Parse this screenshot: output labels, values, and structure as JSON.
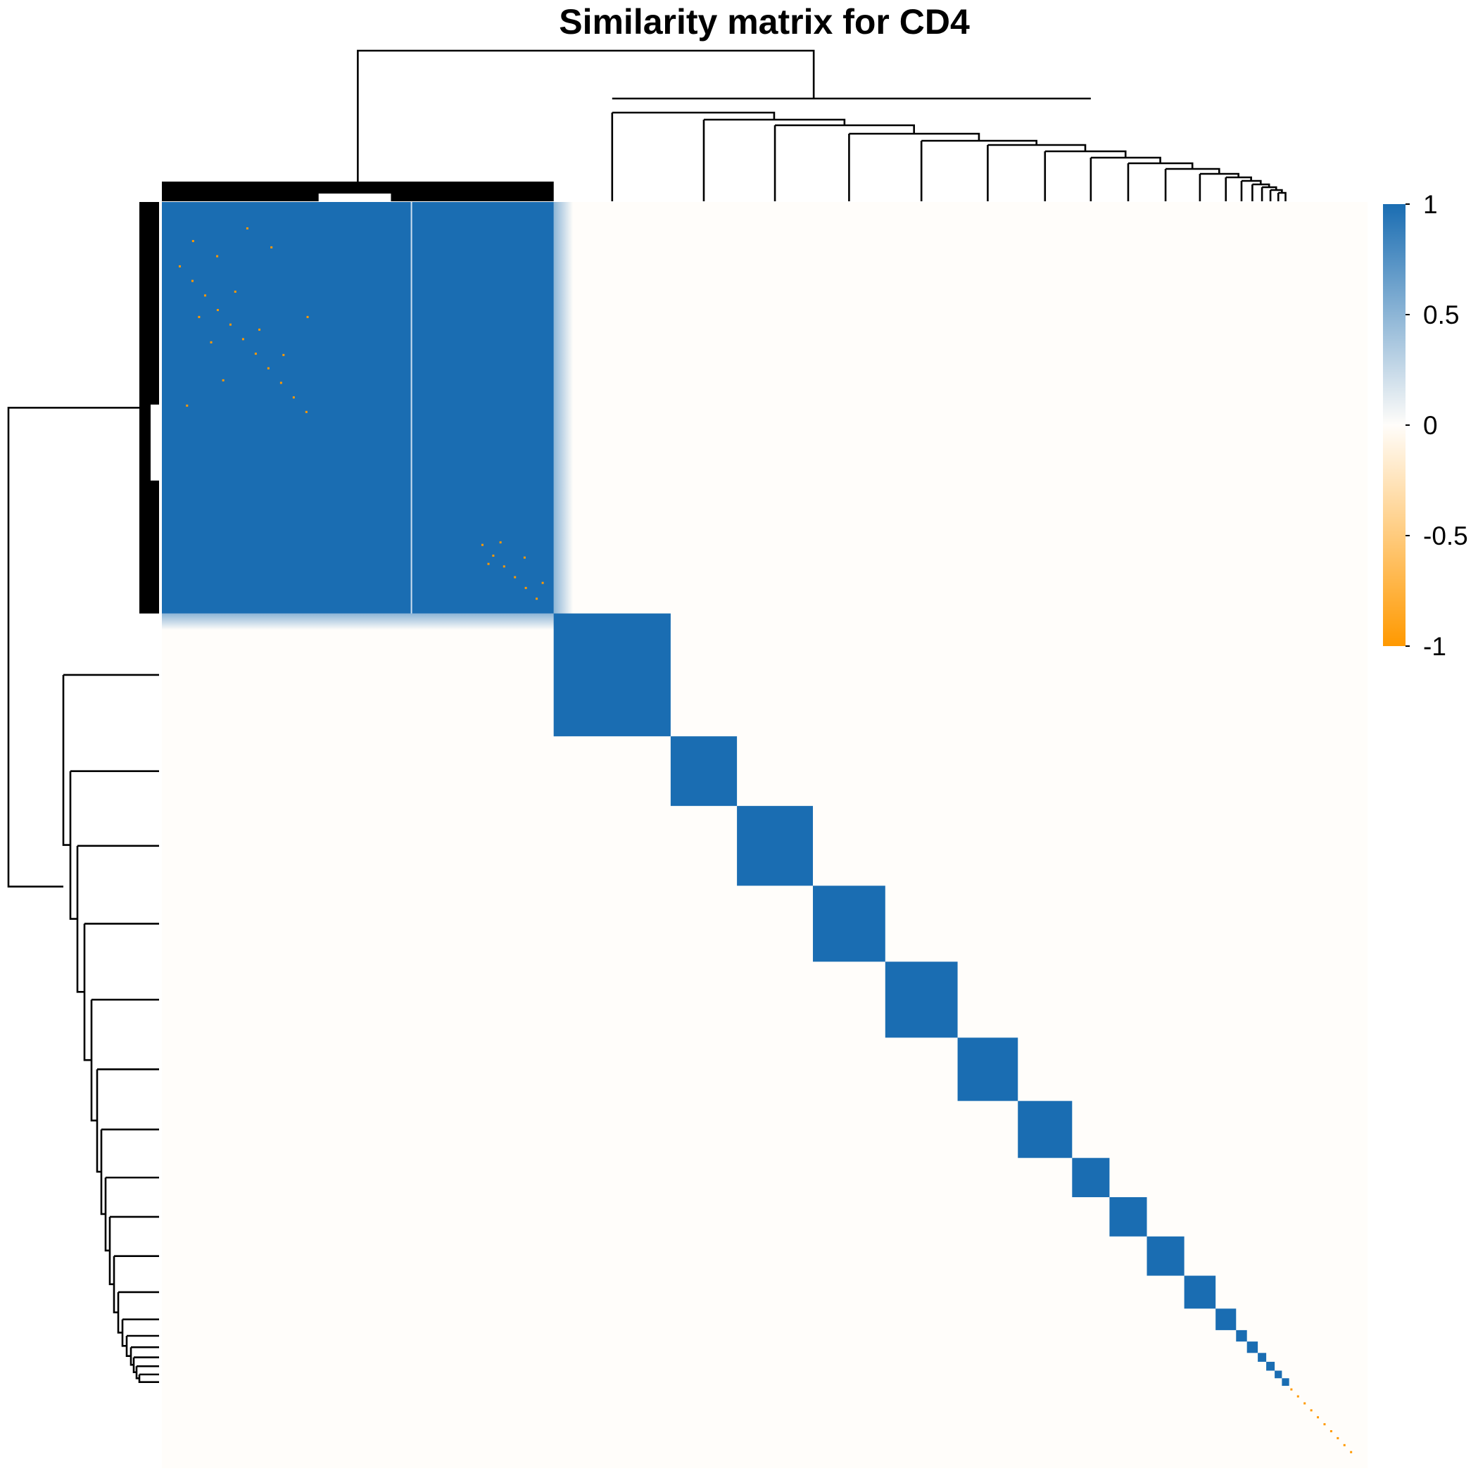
{
  "chart_data": {
    "type": "heatmap",
    "title": "Similarity matrix for CD4",
    "xlabel": "",
    "ylabel": "",
    "matrix_kind": "symmetric clustered similarity matrix with row and column dendrograms",
    "color_scale": {
      "min": -1,
      "max": 1,
      "ticks": [
        1,
        0.5,
        0,
        -0.5,
        -1
      ],
      "tick_labels": [
        "1",
        "0.5",
        "0",
        "-0.5",
        "-1"
      ],
      "colors": {
        "low": "#ff9900",
        "mid": "#fffdfa",
        "high": "#1a6db2"
      }
    },
    "n_items_approx": 100,
    "diagonal_blocks": [
      {
        "cluster": 1,
        "start": 0.0,
        "end": 32.5,
        "value": 1
      },
      {
        "cluster": 2,
        "start": 32.5,
        "end": 42.2,
        "value": 1
      },
      {
        "cluster": 3,
        "start": 42.2,
        "end": 47.7,
        "value": 1
      },
      {
        "cluster": 4,
        "start": 47.7,
        "end": 54.0,
        "value": 1
      },
      {
        "cluster": 5,
        "start": 54.0,
        "end": 60.0,
        "value": 1
      },
      {
        "cluster": 6,
        "start": 60.0,
        "end": 66.0,
        "value": 1
      },
      {
        "cluster": 7,
        "start": 66.0,
        "end": 71.0,
        "value": 1
      },
      {
        "cluster": 8,
        "start": 71.0,
        "end": 75.5,
        "value": 1
      },
      {
        "cluster": 9,
        "start": 75.5,
        "end": 78.6,
        "value": 1
      },
      {
        "cluster": 10,
        "start": 78.6,
        "end": 81.7,
        "value": 1
      },
      {
        "cluster": 11,
        "start": 81.7,
        "end": 84.8,
        "value": 1
      },
      {
        "cluster": 12,
        "start": 84.8,
        "end": 87.4,
        "value": 1
      },
      {
        "cluster": 13,
        "start": 87.4,
        "end": 89.1,
        "value": 1
      },
      {
        "cluster": 14,
        "start": 89.1,
        "end": 90.0,
        "value": 1
      },
      {
        "cluster": 15,
        "start": 90.0,
        "end": 90.9,
        "value": 1
      },
      {
        "cluster": 16,
        "start": 90.9,
        "end": 91.6,
        "value": 1
      },
      {
        "cluster": 17,
        "start": 91.6,
        "end": 92.3,
        "value": 1
      },
      {
        "cluster": 18,
        "start": 92.3,
        "end": 92.9,
        "value": 1
      },
      {
        "cluster": 19,
        "start": 92.9,
        "end": 93.5,
        "value": 1
      }
    ],
    "sub_block_split": 20.7,
    "off_diagonal_value": 0,
    "negative_entries": "sparse scattered cells near -1 within cluster 1 and on the lower-right diagonal",
    "grid": false,
    "legend": "right"
  }
}
